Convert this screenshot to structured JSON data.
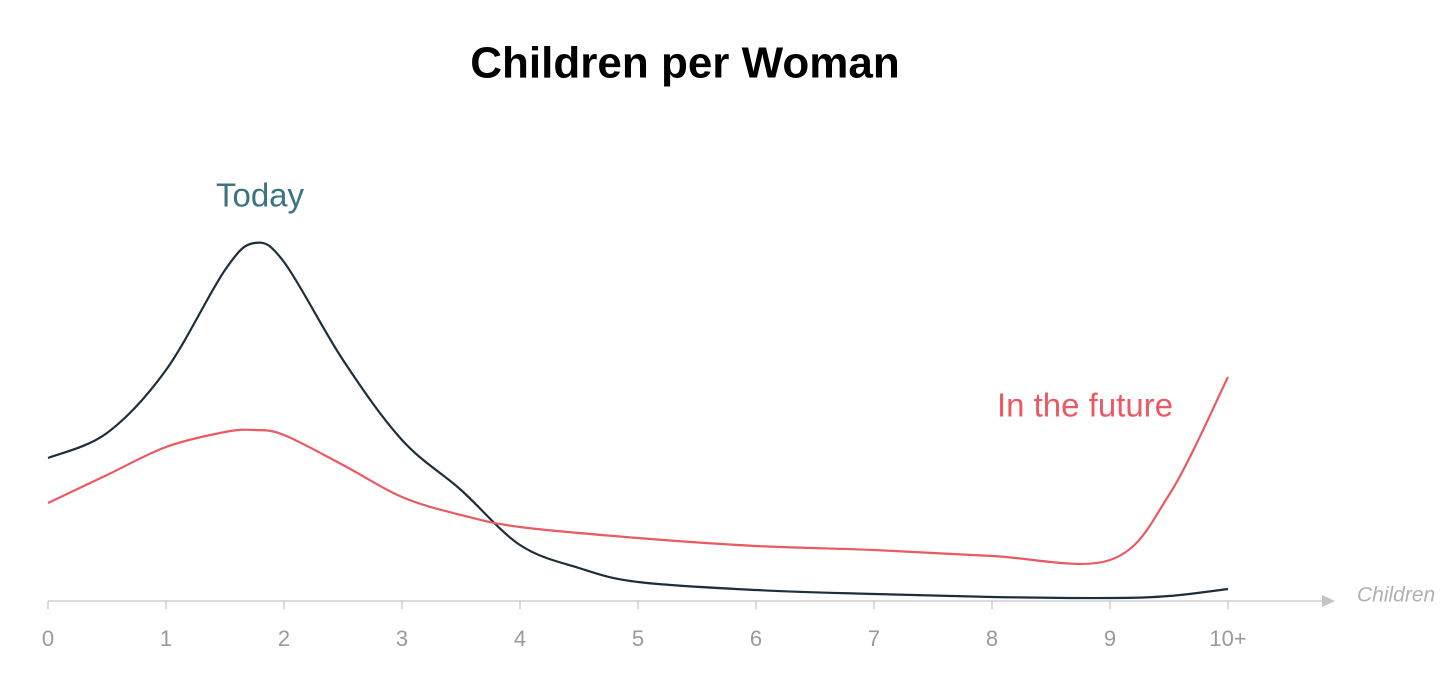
{
  "chart_data": {
    "type": "line",
    "title": "Children per Woman",
    "x_label": "Children",
    "xlim": [
      0,
      11
    ],
    "xticks": [
      0,
      1,
      2,
      3,
      4,
      5,
      6,
      7,
      8,
      9,
      {
        "value": 10,
        "label": "10+"
      }
    ],
    "ylim": [
      0,
      400
    ],
    "series": [
      {
        "name": "Today",
        "color": "#1c2f3a",
        "x": [
          0,
          0.5,
          1,
          1.5,
          1.75,
          2,
          2.5,
          3,
          3.5,
          4,
          4.5,
          5,
          6,
          7,
          8,
          9,
          9.5,
          10
        ],
        "values": [
          142,
          167,
          230,
          330,
          357,
          338,
          240,
          160,
          110,
          55,
          32,
          18,
          10,
          6,
          3,
          2,
          4,
          11
        ]
      },
      {
        "name": "In the future",
        "color": "#ea5a63",
        "x": [
          0,
          0.5,
          1,
          1.5,
          1.75,
          2,
          2.5,
          3,
          3.5,
          4,
          5,
          6,
          7,
          8,
          9,
          9.5,
          10
        ],
        "values": [
          97,
          125,
          153,
          168,
          170,
          165,
          135,
          103,
          85,
          73,
          62,
          54,
          50,
          44,
          40,
          105,
          223
        ]
      }
    ]
  }
}
